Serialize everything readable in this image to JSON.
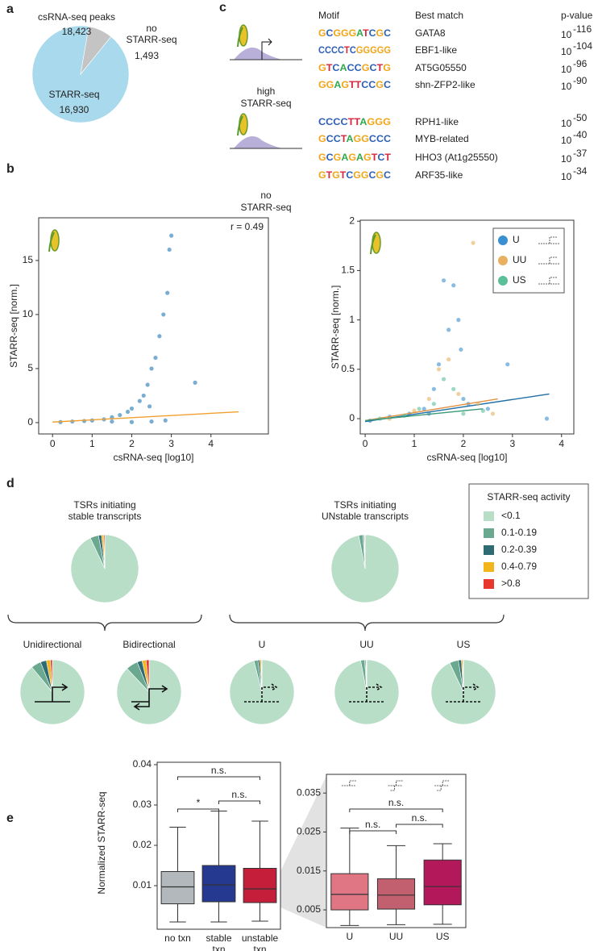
{
  "panel_labels": [
    "a",
    "b",
    "c",
    "d",
    "e"
  ],
  "chart_data": [
    {
      "type": "pie",
      "title": "csRNA-seq peaks",
      "subtitle": "18,423",
      "categories": [
        "STARR-seq",
        "no\nSTARR-seq"
      ],
      "values": [
        16930,
        1493
      ],
      "value_labels": [
        "16,930",
        "1,493"
      ],
      "colors": [
        "#a9d9ec",
        "#c4c4c4"
      ]
    },
    {
      "type": "scatter",
      "xlabel": "csRNA-seq [log10]",
      "ylabel": "STARR-seq [norm.]",
      "annotation": "r = 0.49",
      "xlim": [
        -0.35,
        5.45
      ],
      "ylim": [
        -1.05,
        18.95
      ],
      "xticks": [
        0,
        1,
        2,
        3,
        4
      ],
      "yticks": [
        0,
        5,
        10,
        15
      ],
      "series": [
        {
          "color": "#1f78b4",
          "x": [
            0.2,
            0.5,
            0.8,
            1.0,
            1.3,
            1.5,
            1.7,
            1.9,
            2.0,
            2.2,
            2.3,
            2.4,
            2.5,
            2.6,
            2.7,
            2.8,
            2.9,
            2.95,
            3.0,
            2.5,
            2.0,
            1.5,
            3.6,
            2.85,
            2.45
          ],
          "values": [
            0.05,
            0.1,
            0.15,
            0.2,
            0.3,
            0.5,
            0.7,
            1.0,
            1.3,
            2.0,
            2.5,
            3.5,
            5.0,
            6.0,
            8.0,
            10.0,
            12.0,
            16.0,
            17.3,
            0.1,
            0.05,
            0.1,
            3.7,
            0.2,
            1.5
          ],
          "fit": {
            "color": "#f0a030",
            "x": [
              0,
              4.7
            ],
            "y": [
              0.05,
              1.0
            ]
          }
        }
      ]
    },
    {
      "type": "scatter",
      "xlabel": "csRNA-seq [log10]",
      "ylabel": "STARR-seq [norm.]",
      "xlim": [
        -0.1,
        4.25
      ],
      "ylim": [
        -0.155,
        2.01
      ],
      "xticks": [
        0,
        1,
        2,
        3,
        4
      ],
      "yticks": [
        0,
        0.5,
        1,
        1.5,
        2
      ],
      "legend": "top-right",
      "series": [
        {
          "name": "U",
          "color": "#3a8fd0",
          "x": [
            0.1,
            0.5,
            0.9,
            1.2,
            1.4,
            1.5,
            1.6,
            1.7,
            1.8,
            1.9,
            1.95,
            2.0,
            2.1,
            1.3,
            2.5,
            2.9,
            3.7
          ],
          "values": [
            -0.02,
            0.02,
            0.05,
            0.1,
            0.3,
            0.55,
            1.4,
            0.9,
            1.35,
            1.0,
            0.7,
            0.2,
            0.15,
            0.05,
            0.1,
            0.55,
            0.0
          ],
          "fit": {
            "color": "#1f6fa8",
            "x": [
              0,
              3.75
            ],
            "y": [
              -0.03,
              0.25
            ]
          }
        },
        {
          "name": "UU",
          "color": "#e8b060",
          "x": [
            0.5,
            1.0,
            1.3,
            1.5,
            1.7,
            1.9,
            2.2,
            2.3,
            2.6
          ],
          "values": [
            0.0,
            0.08,
            0.2,
            0.5,
            0.6,
            0.25,
            1.78,
            0.15,
            0.05
          ],
          "fit": {
            "color": "#e09040",
            "x": [
              0,
              2.7
            ],
            "y": [
              -0.02,
              0.2
            ]
          }
        },
        {
          "name": "US",
          "color": "#5cbf9a",
          "x": [
            0.3,
            0.8,
            1.1,
            1.4,
            1.6,
            1.8,
            2.0,
            2.4
          ],
          "values": [
            0.0,
            0.03,
            0.1,
            0.15,
            0.4,
            0.3,
            0.05,
            0.08
          ],
          "fit": {
            "color": "#3a9a78",
            "x": [
              0,
              2.4
            ],
            "y": [
              -0.02,
              0.1
            ]
          }
        }
      ]
    },
    {
      "type": "pie-set",
      "legend_title": "STARR-seq activity",
      "categories": [
        "<0.1",
        "0.1-0.19",
        "0.2-0.39",
        "0.4-0.79",
        ">0.8"
      ],
      "colors": [
        "#b8dec8",
        "#6aa88f",
        "#2e6b73",
        "#f2b51c",
        "#e8382e"
      ],
      "pies": [
        {
          "title": "TSRs initiating\nstable transcripts",
          "values": [
            93,
            4,
            1.5,
            1,
            0.5
          ]
        },
        {
          "title": "TSRs initiating\nUNstable transcripts",
          "values": [
            97,
            2,
            0.5,
            0.3,
            0.2
          ]
        },
        {
          "title": "Unidirectional",
          "values": [
            89,
            5,
            3,
            2,
            1
          ]
        },
        {
          "title": "Bidirectional",
          "values": [
            88,
            6,
            2.5,
            2,
            1.5
          ]
        },
        {
          "title": "U",
          "values": [
            96,
            2,
            1,
            0.7,
            0.3
          ]
        },
        {
          "title": "UU",
          "values": [
            97,
            2,
            0.5,
            0.3,
            0.2
          ]
        },
        {
          "title": "US",
          "values": [
            93,
            4.5,
            1.5,
            0.7,
            0.3
          ]
        }
      ]
    },
    {
      "type": "box",
      "ylabel": "Normalized STARR-seq",
      "ylim": [
        -0.0008,
        0.0406
      ],
      "yticks": [
        0.01,
        0.02,
        0.03,
        0.04
      ],
      "categories": [
        "no txn",
        "stable\ntxn",
        "unstable\ntxn"
      ],
      "colors": [
        "#b3b8bc",
        "#24398f",
        "#c41e3a"
      ],
      "boxes": [
        {
          "min": 0.001,
          "q1": 0.0055,
          "median": 0.0097,
          "q3": 0.0135,
          "max": 0.0245
        },
        {
          "min": 0.001,
          "q1": 0.006,
          "median": 0.0102,
          "q3": 0.015,
          "max": 0.0285
        },
        {
          "min": 0.0012,
          "q1": 0.0058,
          "median": 0.0092,
          "q3": 0.0143,
          "max": 0.026
        }
      ],
      "annotations": [
        "n.s.",
        "*",
        "n.s."
      ]
    },
    {
      "type": "box",
      "ylim": [
        0.00045,
        0.0398
      ],
      "yticks": [
        0.005,
        0.015,
        0.025,
        0.035
      ],
      "categories": [
        "U",
        "UU",
        "US"
      ],
      "colors": [
        "#e07584",
        "#c2606f",
        "#b2185a"
      ],
      "boxes": [
        {
          "min": 0.001,
          "q1": 0.005,
          "median": 0.009,
          "q3": 0.0143,
          "max": 0.026
        },
        {
          "min": 0.0012,
          "q1": 0.0052,
          "median": 0.0088,
          "q3": 0.013,
          "max": 0.0215
        },
        {
          "min": 0.0013,
          "q1": 0.0063,
          "median": 0.011,
          "q3": 0.0178,
          "max": 0.022
        }
      ],
      "annotations": [
        "n.s.",
        "n.s.",
        "n.s."
      ]
    }
  ],
  "motif_table": {
    "headers": [
      "Motif",
      "Best match",
      "p-value"
    ],
    "groups": [
      {
        "label_top": "high",
        "label_top_color": "#d7263d",
        "label": "STARR-seq",
        "rows": [
          {
            "motif": "GCGGGATCGC",
            "match": "GATA8",
            "p_base": "10",
            "p_exp": "-116"
          },
          {
            "motif": "CCCCTCGGGGG",
            "match": "EBF1-like",
            "p_base": "10",
            "p_exp": "-104"
          },
          {
            "motif": "GTCACCGCTG",
            "match": "AT5G05550",
            "p_base": "10",
            "p_exp": "-96"
          },
          {
            "motif": "GGAGTTCCGC",
            "match": "shn-ZFP2-like",
            "p_base": "10",
            "p_exp": "-90"
          }
        ]
      },
      {
        "label_top": "no",
        "label_top_color": "#333333",
        "label": "STARR-seq",
        "rows": [
          {
            "motif": "CCCCTTAGGG",
            "match": "RPH1-like",
            "p_base": "10",
            "p_exp": "-50"
          },
          {
            "motif": "GCCTAGGCCC",
            "match": "MYB-related",
            "p_base": "10",
            "p_exp": "-40"
          },
          {
            "motif": "GCGAGAGTCT",
            "match": "HHO3 (At1g25550)",
            "p_base": "10",
            "p_exp": "-37"
          },
          {
            "motif": "GTGTCGGCGC",
            "match": "ARF35-like",
            "p_base": "10",
            "p_exp": "-34"
          }
        ]
      }
    ]
  }
}
